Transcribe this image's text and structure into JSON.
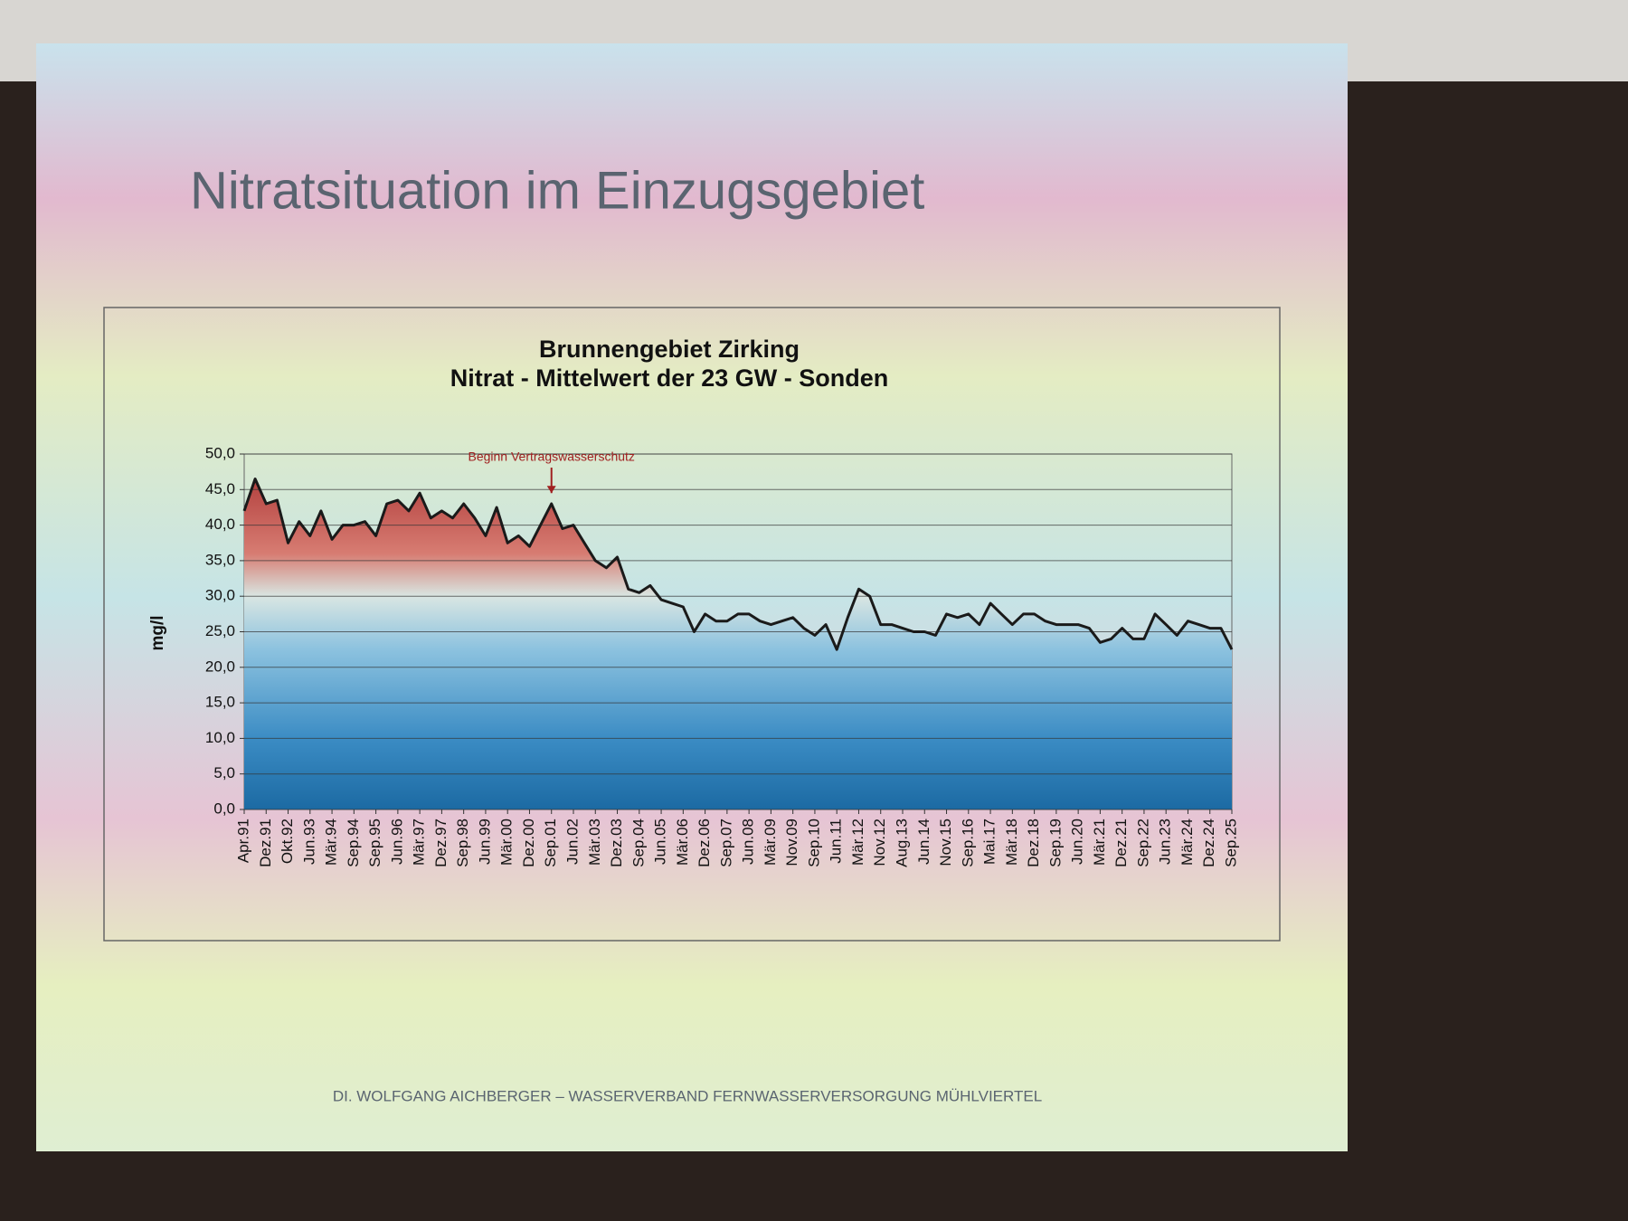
{
  "slide": {
    "title": "Nitratsituation im Einzugsgebiet",
    "footer": "DI. WOLFGANG AICHBERGER – WASSERVERBAND FERNWASSERVERSORGUNG MÜHLVIERTEL"
  },
  "chart_data": {
    "type": "area",
    "title": "Brunnengebiet Zirking",
    "subtitle": "Nitrat - Mittelwert der 23 GW - Sonden",
    "y_label": "mg/l",
    "annotation": "Beginn Vertragswasserschutz",
    "categories": [
      "Apr.91",
      null,
      "Dez.91",
      null,
      "Okt.92",
      null,
      "Jun.93",
      null,
      "Mär.94",
      null,
      "Sep.94",
      null,
      "Sep.95",
      null,
      "Jun.96",
      null,
      "Mär.97",
      null,
      "Dez.97",
      null,
      "Sep.98",
      null,
      "Jun.99",
      null,
      "Mär.00",
      null,
      "Dez.00",
      null,
      "Sep.01",
      null,
      "Jun.02",
      null,
      "Mär.03",
      null,
      "Dez.03",
      null,
      "Sep.04",
      null,
      "Jun.05",
      null,
      "Mär.06",
      null,
      "Dez.06",
      null,
      "Sep.07",
      null,
      "Jun.08",
      null,
      "Mär.09",
      null,
      "Nov.09",
      null,
      "Sep.10",
      null,
      "Jun.11",
      null,
      "Mär.12",
      null,
      "Nov.12",
      null,
      "Aug.13",
      null,
      "Jun.14",
      null,
      "Nov.15",
      null,
      "Sep.16",
      null,
      "Mai.17",
      null,
      "Mär.18",
      null,
      "Dez.18",
      null,
      "Sep.19",
      null,
      "Jun.20",
      null,
      "Mär.21",
      null,
      "Dez.21",
      null,
      "Sep.22",
      null,
      "Jun.23",
      null,
      "Mär.24",
      null,
      "Dez.24",
      null,
      "Sep.25"
    ],
    "series": [
      {
        "name": "Nitrat",
        "color": "#1a1a1a",
        "values": [
          42,
          46.5,
          43,
          43.5,
          37.5,
          40.5,
          38.5,
          42,
          38,
          40,
          40,
          40.5,
          38.5,
          43,
          43.5,
          42,
          44.5,
          41,
          42,
          41,
          43,
          41,
          38.5,
          42.5,
          37.5,
          38.5,
          37,
          40,
          43,
          39.5,
          40,
          37.5,
          35,
          34,
          35.5,
          31,
          30.5,
          31.5,
          29.5,
          29,
          28.5,
          25,
          27.5,
          26.5,
          26.5,
          27.5,
          27.5,
          26.5,
          26,
          26.5,
          27,
          25.5,
          24.5,
          26,
          22.5,
          27,
          31,
          30,
          26,
          26,
          25.5,
          25,
          25,
          24.5,
          27.5,
          27,
          27.5,
          26,
          29,
          27.5,
          26,
          27.5,
          27.5,
          26.5,
          26,
          26,
          26,
          25.5,
          23.5,
          24,
          25.5,
          24,
          24,
          27.5,
          26,
          24.5,
          26.5,
          26,
          25.5,
          25.5,
          22.5
        ]
      }
    ],
    "ylim": [
      0,
      50
    ],
    "yticks": [
      {
        "value": 0,
        "label": "0,0"
      },
      {
        "value": 5,
        "label": "5,0"
      },
      {
        "value": 10,
        "label": "10,0"
      },
      {
        "value": 15,
        "label": "15,0"
      },
      {
        "value": 20,
        "label": "20,0"
      },
      {
        "value": 25,
        "label": "25,0"
      },
      {
        "value": 30,
        "label": "30,0"
      },
      {
        "value": 35,
        "label": "35,0"
      },
      {
        "value": 40,
        "label": "40,0"
      },
      {
        "value": 45,
        "label": "45,0"
      },
      {
        "value": 50,
        "label": "50,0"
      }
    ],
    "grid": true
  }
}
